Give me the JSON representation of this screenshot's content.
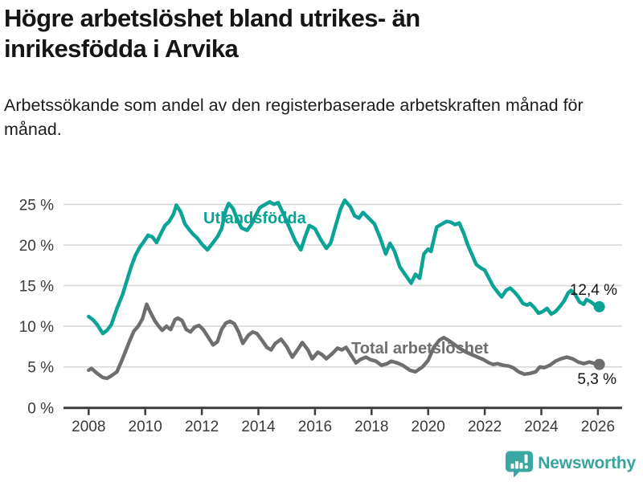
{
  "header": {
    "title": "Högre arbetslöshet bland utrikes- än inrikesfödda i Arvika",
    "subtitle": "Arbetssökande som andel av den registerbaserade arbetskraften månad för månad."
  },
  "footer": {
    "brand": "Newsworthy",
    "logo_icon": "newsworthy-speech-bubble-bar-chart-icon"
  },
  "colors": {
    "teal_series": "#0aa396",
    "gray_series": "#6e6e6e",
    "axis": "#3c3c3c",
    "grid": "#d7d7d7",
    "tick_text": "#3a3a3a",
    "value_text": "#141414",
    "brand_teal": "#3ba39e"
  },
  "chart_data": {
    "type": "line",
    "xlabel": "",
    "ylabel": "",
    "xlim": [
      2007.1,
      2026.9
    ],
    "ylim": [
      0,
      26
    ],
    "grid": true,
    "legend_position": "inline-labels",
    "x_ticks": [
      {
        "value": 2008,
        "label": "2008"
      },
      {
        "value": 2010,
        "label": "2010"
      },
      {
        "value": 2012,
        "label": "2012"
      },
      {
        "value": 2014,
        "label": "2014"
      },
      {
        "value": 2016,
        "label": "2016"
      },
      {
        "value": 2018,
        "label": "2018"
      },
      {
        "value": 2020,
        "label": "2020"
      },
      {
        "value": 2022,
        "label": "2022"
      },
      {
        "value": 2024,
        "label": "2024"
      },
      {
        "value": 2026,
        "label": "2026"
      }
    ],
    "y_ticks": [
      {
        "value": 0,
        "label": "0 %"
      },
      {
        "value": 5,
        "label": "5 %"
      },
      {
        "value": 10,
        "label": "10 %"
      },
      {
        "value": 15,
        "label": "15 %"
      },
      {
        "value": 20,
        "label": "20 %"
      },
      {
        "value": 25,
        "label": "25 %"
      }
    ],
    "series": [
      {
        "name": "Utlandsfödda",
        "color": "#0aa396",
        "end_label": "12,4 %",
        "end_value": 12.4,
        "points": [
          [
            2008.0,
            11.2
          ],
          [
            2008.15,
            10.8
          ],
          [
            2008.3,
            10.2
          ],
          [
            2008.5,
            9.1
          ],
          [
            2008.65,
            9.5
          ],
          [
            2008.8,
            10.2
          ],
          [
            2009.0,
            12.2
          ],
          [
            2009.2,
            13.9
          ],
          [
            2009.35,
            15.6
          ],
          [
            2009.5,
            17.3
          ],
          [
            2009.65,
            18.7
          ],
          [
            2009.8,
            19.7
          ],
          [
            2009.95,
            20.4
          ],
          [
            2010.1,
            21.2
          ],
          [
            2010.25,
            21.0
          ],
          [
            2010.4,
            20.3
          ],
          [
            2010.55,
            21.4
          ],
          [
            2010.7,
            22.4
          ],
          [
            2010.85,
            22.9
          ],
          [
            2011.0,
            23.8
          ],
          [
            2011.1,
            24.9
          ],
          [
            2011.25,
            24.1
          ],
          [
            2011.4,
            22.6
          ],
          [
            2011.55,
            21.9
          ],
          [
            2011.7,
            21.3
          ],
          [
            2011.85,
            20.8
          ],
          [
            2012.0,
            20.1
          ],
          [
            2012.2,
            19.4
          ],
          [
            2012.4,
            20.3
          ],
          [
            2012.55,
            21.0
          ],
          [
            2012.7,
            22.0
          ],
          [
            2012.85,
            24.3
          ],
          [
            2012.95,
            25.1
          ],
          [
            2013.1,
            24.5
          ],
          [
            2013.25,
            23.2
          ],
          [
            2013.4,
            22.1
          ],
          [
            2013.6,
            21.8
          ],
          [
            2013.75,
            22.5
          ],
          [
            2013.9,
            23.6
          ],
          [
            2014.05,
            24.6
          ],
          [
            2014.25,
            25.0
          ],
          [
            2014.4,
            25.3
          ],
          [
            2014.55,
            25.0
          ],
          [
            2014.7,
            25.2
          ],
          [
            2014.9,
            23.7
          ],
          [
            2015.1,
            22.1
          ],
          [
            2015.3,
            20.5
          ],
          [
            2015.5,
            19.4
          ],
          [
            2015.65,
            21.0
          ],
          [
            2015.8,
            22.4
          ],
          [
            2016.0,
            22.0
          ],
          [
            2016.2,
            20.7
          ],
          [
            2016.4,
            19.6
          ],
          [
            2016.55,
            20.2
          ],
          [
            2016.7,
            22.0
          ],
          [
            2016.9,
            24.4
          ],
          [
            2017.05,
            25.5
          ],
          [
            2017.25,
            24.7
          ],
          [
            2017.4,
            23.6
          ],
          [
            2017.55,
            23.3
          ],
          [
            2017.7,
            24.0
          ],
          [
            2017.9,
            23.3
          ],
          [
            2018.1,
            22.6
          ],
          [
            2018.3,
            20.9
          ],
          [
            2018.5,
            18.9
          ],
          [
            2018.65,
            20.2
          ],
          [
            2018.8,
            19.3
          ],
          [
            2019.0,
            17.3
          ],
          [
            2019.2,
            16.3
          ],
          [
            2019.4,
            15.3
          ],
          [
            2019.55,
            16.4
          ],
          [
            2019.7,
            15.9
          ],
          [
            2019.85,
            18.9
          ],
          [
            2020.0,
            19.5
          ],
          [
            2020.1,
            19.2
          ],
          [
            2020.3,
            22.2
          ],
          [
            2020.5,
            22.6
          ],
          [
            2020.65,
            22.9
          ],
          [
            2020.8,
            22.8
          ],
          [
            2020.95,
            22.5
          ],
          [
            2021.1,
            22.7
          ],
          [
            2021.25,
            21.5
          ],
          [
            2021.4,
            20.0
          ],
          [
            2021.55,
            18.8
          ],
          [
            2021.7,
            17.6
          ],
          [
            2021.85,
            17.2
          ],
          [
            2022.0,
            16.9
          ],
          [
            2022.15,
            15.9
          ],
          [
            2022.3,
            14.9
          ],
          [
            2022.5,
            14.0
          ],
          [
            2022.6,
            13.6
          ],
          [
            2022.75,
            14.4
          ],
          [
            2022.9,
            14.7
          ],
          [
            2023.05,
            14.2
          ],
          [
            2023.2,
            13.6
          ],
          [
            2023.35,
            12.8
          ],
          [
            2023.5,
            12.6
          ],
          [
            2023.6,
            12.8
          ],
          [
            2023.75,
            12.3
          ],
          [
            2023.9,
            11.6
          ],
          [
            2024.05,
            11.8
          ],
          [
            2024.2,
            12.2
          ],
          [
            2024.35,
            11.5
          ],
          [
            2024.5,
            11.8
          ],
          [
            2024.65,
            12.4
          ],
          [
            2024.8,
            13.1
          ],
          [
            2024.95,
            14.1
          ],
          [
            2025.05,
            14.4
          ],
          [
            2025.2,
            13.9
          ],
          [
            2025.35,
            13.0
          ],
          [
            2025.5,
            12.7
          ],
          [
            2025.6,
            13.3
          ],
          [
            2025.75,
            13.0
          ],
          [
            2025.9,
            12.6
          ],
          [
            2026.05,
            12.4
          ]
        ]
      },
      {
        "name": "Total arbetslöshet",
        "color": "#6e6e6e",
        "end_label": "5,3 %",
        "end_value": 5.3,
        "points": [
          [
            2008.0,
            4.6
          ],
          [
            2008.1,
            4.8
          ],
          [
            2008.3,
            4.2
          ],
          [
            2008.5,
            3.7
          ],
          [
            2008.65,
            3.6
          ],
          [
            2008.8,
            3.9
          ],
          [
            2009.0,
            4.4
          ],
          [
            2009.15,
            5.6
          ],
          [
            2009.3,
            6.9
          ],
          [
            2009.45,
            8.2
          ],
          [
            2009.6,
            9.4
          ],
          [
            2009.75,
            10.0
          ],
          [
            2009.9,
            10.9
          ],
          [
            2010.05,
            12.7
          ],
          [
            2010.2,
            11.6
          ],
          [
            2010.35,
            10.6
          ],
          [
            2010.5,
            9.9
          ],
          [
            2010.6,
            9.5
          ],
          [
            2010.75,
            10.0
          ],
          [
            2010.9,
            9.6
          ],
          [
            2011.05,
            10.8
          ],
          [
            2011.15,
            11.0
          ],
          [
            2011.3,
            10.7
          ],
          [
            2011.45,
            9.6
          ],
          [
            2011.6,
            9.3
          ],
          [
            2011.75,
            9.9
          ],
          [
            2011.9,
            10.1
          ],
          [
            2012.05,
            9.6
          ],
          [
            2012.2,
            8.8
          ],
          [
            2012.4,
            7.7
          ],
          [
            2012.55,
            8.1
          ],
          [
            2012.7,
            9.6
          ],
          [
            2012.85,
            10.4
          ],
          [
            2013.0,
            10.6
          ],
          [
            2013.15,
            10.3
          ],
          [
            2013.3,
            9.3
          ],
          [
            2013.45,
            7.9
          ],
          [
            2013.65,
            8.9
          ],
          [
            2013.8,
            9.3
          ],
          [
            2013.95,
            9.1
          ],
          [
            2014.1,
            8.4
          ],
          [
            2014.3,
            7.4
          ],
          [
            2014.45,
            7.1
          ],
          [
            2014.6,
            7.9
          ],
          [
            2014.8,
            8.4
          ],
          [
            2015.0,
            7.5
          ],
          [
            2015.2,
            6.2
          ],
          [
            2015.4,
            7.2
          ],
          [
            2015.55,
            8.0
          ],
          [
            2015.75,
            7.1
          ],
          [
            2015.9,
            6.0
          ],
          [
            2016.1,
            6.8
          ],
          [
            2016.25,
            6.5
          ],
          [
            2016.4,
            6.0
          ],
          [
            2016.6,
            6.6
          ],
          [
            2016.8,
            7.3
          ],
          [
            2016.95,
            7.1
          ],
          [
            2017.1,
            7.4
          ],
          [
            2017.3,
            6.3
          ],
          [
            2017.45,
            5.5
          ],
          [
            2017.6,
            5.9
          ],
          [
            2017.8,
            6.2
          ],
          [
            2017.95,
            5.9
          ],
          [
            2018.15,
            5.7
          ],
          [
            2018.35,
            5.2
          ],
          [
            2018.55,
            5.4
          ],
          [
            2018.7,
            5.7
          ],
          [
            2018.9,
            5.5
          ],
          [
            2019.1,
            5.2
          ],
          [
            2019.35,
            4.6
          ],
          [
            2019.55,
            4.4
          ],
          [
            2019.8,
            5.0
          ],
          [
            2020.0,
            5.8
          ],
          [
            2020.2,
            7.4
          ],
          [
            2020.4,
            8.3
          ],
          [
            2020.55,
            8.6
          ],
          [
            2020.75,
            8.2
          ],
          [
            2020.95,
            7.7
          ],
          [
            2021.15,
            7.2
          ],
          [
            2021.35,
            6.8
          ],
          [
            2021.55,
            6.5
          ],
          [
            2021.75,
            6.2
          ],
          [
            2021.95,
            5.9
          ],
          [
            2022.15,
            5.5
          ],
          [
            2022.3,
            5.3
          ],
          [
            2022.45,
            5.4
          ],
          [
            2022.65,
            5.2
          ],
          [
            2022.85,
            5.1
          ],
          [
            2023.0,
            4.9
          ],
          [
            2023.2,
            4.4
          ],
          [
            2023.4,
            4.1
          ],
          [
            2023.6,
            4.2
          ],
          [
            2023.8,
            4.4
          ],
          [
            2023.95,
            5.0
          ],
          [
            2024.1,
            4.9
          ],
          [
            2024.3,
            5.2
          ],
          [
            2024.5,
            5.7
          ],
          [
            2024.7,
            6.0
          ],
          [
            2024.9,
            6.2
          ],
          [
            2025.1,
            6.0
          ],
          [
            2025.3,
            5.6
          ],
          [
            2025.5,
            5.4
          ],
          [
            2025.7,
            5.6
          ],
          [
            2025.9,
            5.4
          ],
          [
            2026.05,
            5.3
          ]
        ]
      }
    ]
  }
}
